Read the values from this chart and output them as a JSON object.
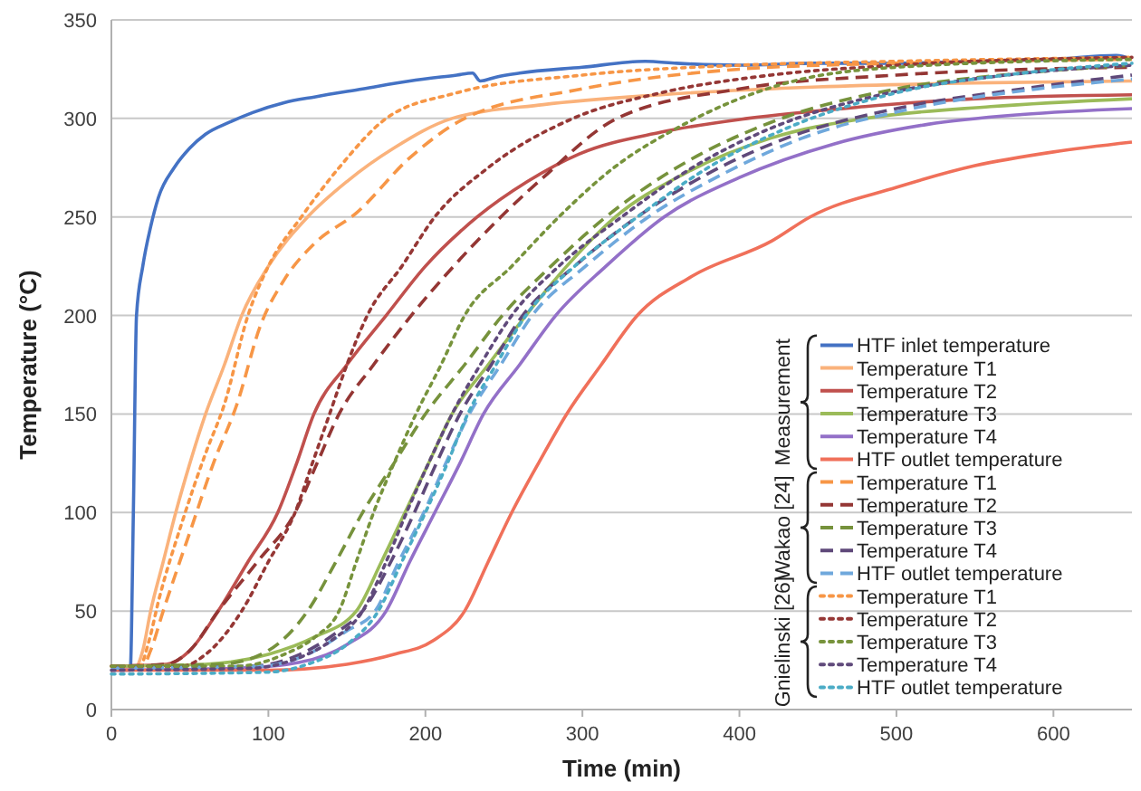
{
  "chart_data": {
    "type": "line",
    "xlabel": "Time (min)",
    "ylabel": "Temperature (°C)",
    "xlim": [
      0,
      650
    ],
    "xticks": [
      0,
      100,
      200,
      300,
      400,
      500,
      600
    ],
    "ylim": [
      0,
      350
    ],
    "yticks": [
      0,
      50,
      100,
      150,
      200,
      250,
      300,
      350
    ],
    "grid": "y",
    "legend": "bottom right",
    "marker": "none",
    "annotations": [
      "Measurement",
      "Wakao [24]",
      "Gnielinski [26]"
    ],
    "series": [
      {
        "name": "HTF inlet temperature",
        "color": "#4472c4",
        "line_style": "solid",
        "x": [
          0,
          12,
          14,
          16,
          20,
          25,
          30,
          40,
          50,
          60,
          75,
          90,
          110,
          130,
          160,
          190,
          220,
          230,
          235,
          245,
          260,
          300,
          340,
          360,
          400,
          450,
          500,
          550,
          600,
          640,
          650
        ],
        "values": [
          20,
          20,
          100,
          200,
          225,
          245,
          260,
          275,
          285,
          292,
          298,
          303,
          308,
          311,
          315,
          319,
          322,
          323,
          319,
          321,
          323,
          326,
          329,
          328,
          327,
          328,
          328,
          329,
          330,
          332,
          330
        ]
      },
      {
        "name": "Temperature T1",
        "color": "#fab27b",
        "line_style": "solid",
        "x": [
          0,
          15,
          20,
          25,
          33,
          41,
          50,
          60,
          72,
          83,
          100,
          125,
          150,
          180,
          217,
          275,
          350,
          450,
          550,
          650
        ],
        "values": [
          20,
          21,
          30,
          50,
          75,
          100,
          125,
          150,
          175,
          200,
          225,
          250,
          268,
          285,
          300,
          307,
          312,
          316,
          318,
          319
        ]
      },
      {
        "name": "Temperature T2",
        "color": "#c0504d",
        "line_style": "solid",
        "x": [
          0,
          35,
          50,
          68,
          87,
          106,
          118,
          129,
          150,
          175,
          200,
          233,
          265,
          298,
          350,
          405,
          480,
          550,
          650
        ],
        "values": [
          22,
          23,
          30,
          50,
          75,
          100,
          125,
          150,
          175,
          200,
          225,
          250,
          268,
          282,
          293,
          300,
          306,
          310,
          312
        ]
      },
      {
        "name": "Temperature T3",
        "color": "#9bbb59",
        "line_style": "solid",
        "x": [
          0,
          60,
          100,
          130,
          156,
          172,
          187,
          202,
          217,
          240,
          264,
          290,
          321,
          365,
          420,
          480,
          560,
          650
        ],
        "values": [
          22,
          23,
          28,
          37,
          50,
          75,
          100,
          125,
          150,
          175,
          200,
          225,
          250,
          272,
          290,
          300,
          306,
          310
        ]
      },
      {
        "name": "Temperature T4",
        "color": "#9370c8",
        "line_style": "solid",
        "x": [
          0,
          80,
          120,
          150,
          175,
          190,
          206,
          222,
          237,
          260,
          283,
          315,
          352,
          400,
          460,
          520,
          580,
          650
        ],
        "values": [
          20,
          21,
          24,
          33,
          50,
          75,
          100,
          125,
          150,
          175,
          200,
          225,
          250,
          270,
          287,
          297,
          302,
          305
        ]
      },
      {
        "name": "HTF outlet temperature",
        "color": "#f0705a",
        "line_style": "solid",
        "x": [
          0,
          100,
          150,
          180,
          205,
          225,
          240,
          255,
          272,
          290,
          312,
          335,
          370,
          421,
          445,
          500,
          550,
          600,
          650
        ],
        "values": [
          20,
          20,
          23,
          28,
          35,
          50,
          75,
          100,
          125,
          150,
          175,
          200,
          220,
          238,
          250,
          265,
          276,
          283,
          288
        ]
      },
      {
        "name": "Temperature T1",
        "color": "#f79646",
        "line_style": "dashed",
        "x": [
          0,
          20,
          25,
          33,
          50,
          65,
          80,
          95,
          110,
          130,
          156,
          190,
          225,
          300,
          400,
          500,
          650
        ],
        "values": [
          22,
          22,
          30,
          50,
          90,
          125,
          155,
          195,
          218,
          237,
          252,
          280,
          300,
          315,
          325,
          328,
          330
        ]
      },
      {
        "name": "Temperature T2",
        "color": "#943634",
        "line_style": "dashed",
        "x": [
          0,
          35,
          50,
          68,
          93,
          117,
          131,
          145,
          167,
          191,
          218,
          248,
          275,
          322,
          400,
          500,
          650
        ],
        "values": [
          22,
          23,
          30,
          50,
          75,
          100,
          125,
          150,
          175,
          200,
          225,
          250,
          270,
          300,
          315,
          322,
          326
        ]
      },
      {
        "name": "Temperature T3",
        "color": "#76923c",
        "line_style": "dashed",
        "x": [
          0,
          70,
          100,
          125,
          143,
          160,
          180,
          200,
          225,
          249,
          280,
          315,
          360,
          420,
          500,
          580,
          650
        ],
        "values": [
          22,
          23,
          30,
          50,
          75,
          100,
          125,
          150,
          175,
          200,
          225,
          250,
          275,
          298,
          315,
          323,
          327
        ]
      },
      {
        "name": "Temperature T4",
        "color": "#5f497a",
        "line_style": "dashed",
        "x": [
          0,
          90,
          120,
          145,
          160,
          178,
          193,
          207,
          222,
          242,
          262,
          295,
          335,
          380,
          430,
          500,
          580,
          650
        ],
        "values": [
          21,
          22,
          28,
          40,
          50,
          75,
          100,
          125,
          150,
          175,
          200,
          225,
          250,
          272,
          290,
          305,
          315,
          322
        ]
      },
      {
        "name": "HTF outlet temperature",
        "color": "#6fa8dc",
        "line_style": "dashed",
        "x": [
          0,
          95,
          125,
          150,
          168,
          183,
          199,
          213,
          228,
          248,
          268,
          302,
          342,
          390,
          440,
          510,
          590,
          650
        ],
        "values": [
          21,
          22,
          28,
          40,
          50,
          75,
          100,
          125,
          150,
          175,
          200,
          225,
          250,
          272,
          290,
          305,
          315,
          320
        ]
      },
      {
        "name": "Temperature T1",
        "color": "#f79646",
        "line_style": "dotted",
        "x": [
          0,
          18,
          24,
          30,
          45,
          60,
          72,
          87,
          100,
          121,
          145,
          175,
          220,
          300,
          400,
          500,
          650
        ],
        "values": [
          22,
          22,
          35,
          55,
          95,
          130,
          155,
          200,
          225,
          250,
          275,
          300,
          313,
          322,
          327,
          329,
          331
        ]
      },
      {
        "name": "Temperature T2",
        "color": "#953735",
        "line_style": "dotted",
        "x": [
          0,
          45,
          60,
          83,
          100,
          117,
          128,
          139,
          150,
          163,
          185,
          206,
          240,
          294,
          350,
          420,
          500,
          650
        ],
        "values": [
          22,
          22,
          28,
          50,
          75,
          100,
          125,
          150,
          175,
          200,
          225,
          250,
          275,
          300,
          313,
          322,
          327,
          331
        ]
      },
      {
        "name": "Temperature T3",
        "color": "#77933c",
        "line_style": "dotted",
        "x": [
          0,
          80,
          110,
          130,
          145,
          156,
          167,
          180,
          194,
          210,
          225,
          255,
          285,
          320,
          360,
          430,
          500,
          650
        ],
        "values": [
          22,
          22,
          28,
          37,
          50,
          75,
          100,
          125,
          150,
          175,
          200,
          225,
          250,
          275,
          295,
          318,
          326,
          330
        ]
      },
      {
        "name": "Temperature T4",
        "color": "#604a7b",
        "line_style": "dotted",
        "x": [
          0,
          90,
          115,
          140,
          160,
          175,
          188,
          202,
          217,
          235,
          255,
          285,
          325,
          370,
          420,
          490,
          570,
          650
        ],
        "values": [
          20,
          21,
          25,
          35,
          50,
          75,
          100,
          125,
          150,
          175,
          200,
          225,
          250,
          275,
          295,
          312,
          322,
          327
        ]
      },
      {
        "name": "HTF outlet temperature",
        "color": "#4bacc6",
        "line_style": "dotted",
        "x": [
          0,
          100,
          125,
          150,
          170,
          185,
          200,
          214,
          227,
          245,
          264,
          295,
          335,
          380,
          430,
          500,
          580,
          650
        ],
        "values": [
          18,
          19,
          23,
          33,
          50,
          75,
          100,
          125,
          150,
          175,
          200,
          225,
          250,
          275,
          295,
          313,
          323,
          328
        ]
      }
    ]
  }
}
